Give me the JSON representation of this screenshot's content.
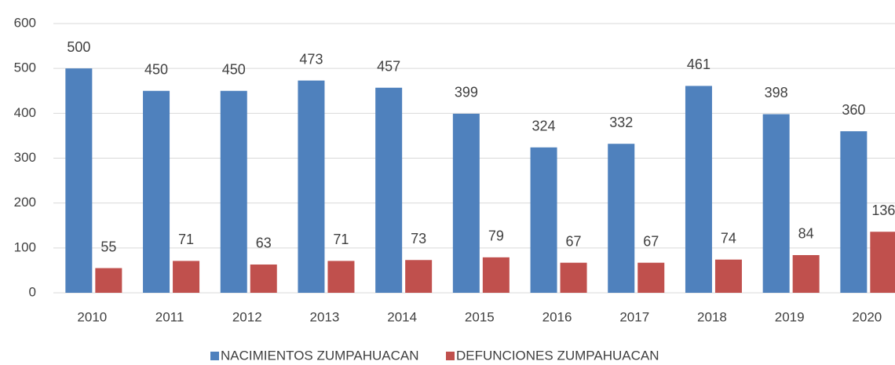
{
  "chart_data": {
    "type": "bar",
    "categories": [
      "2010",
      "2011",
      "2012",
      "2013",
      "2014",
      "2015",
      "2016",
      "2017",
      "2018",
      "2019",
      "2020"
    ],
    "series": [
      {
        "name": "NACIMIENTOS ZUMPAHUACAN",
        "color": "#4f81bd",
        "values": [
          500,
          450,
          450,
          473,
          457,
          399,
          324,
          332,
          461,
          398,
          360
        ]
      },
      {
        "name": "DEFUNCIONES ZUMPAHUACAN",
        "color": "#c0504d",
        "values": [
          55,
          71,
          63,
          71,
          73,
          79,
          67,
          67,
          74,
          84,
          136
        ]
      }
    ],
    "ylim": [
      0,
      600
    ],
    "yticks": [
      0,
      100,
      200,
      300,
      400,
      500,
      600
    ],
    "grid": true,
    "legend": "bottom"
  }
}
